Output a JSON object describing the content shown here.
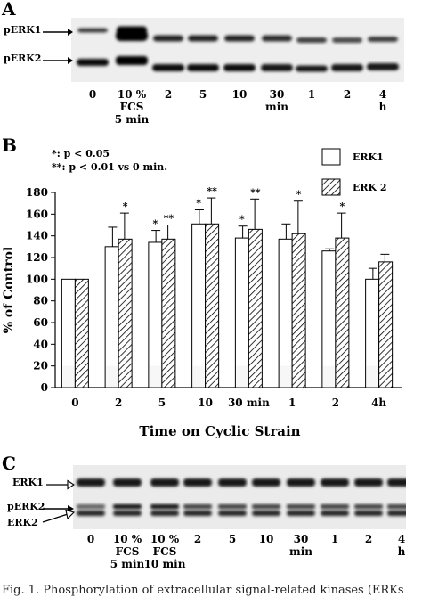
{
  "panel_a": {
    "letter": "A",
    "band_labels": [
      "pERK1",
      "pERK2"
    ],
    "lanes": [
      "0",
      "10 %\nFCS\n5 min",
      "2",
      "5",
      "10",
      "30\nmin",
      "1",
      "2",
      "4\nh"
    ]
  },
  "chart_data": {
    "type": "bar",
    "panel_letter": "B",
    "title": "",
    "xlabel": "Time on Cyclic Strain",
    "ylabel": "% of Control",
    "ylim": [
      0,
      180
    ],
    "yticks": [
      0,
      20,
      40,
      60,
      80,
      100,
      120,
      140,
      160,
      180
    ],
    "categories": [
      "0",
      "2",
      "5",
      "10",
      "30 min",
      "1",
      "2",
      "4h"
    ],
    "series": [
      {
        "name": "ERK1",
        "values": [
          100,
          130,
          134,
          151,
          138,
          137,
          126,
          100
        ],
        "errors": [
          0,
          18,
          11,
          13,
          11,
          14,
          2,
          10
        ]
      },
      {
        "name": "ERK 2",
        "values": [
          100,
          137,
          137,
          151,
          146,
          142,
          138,
          116
        ],
        "errors": [
          0,
          24,
          13,
          24,
          28,
          30,
          23,
          7
        ]
      }
    ],
    "significance": [
      {
        "category": "5",
        "series": "ERK1",
        "mark": "*"
      },
      {
        "category": "5",
        "series": "ERK 2",
        "mark": "**"
      },
      {
        "category": "10",
        "series": "ERK1",
        "mark": "*"
      },
      {
        "category": "10",
        "series": "ERK 2",
        "mark": "**"
      },
      {
        "category": "30 min",
        "series": "ERK1",
        "mark": "*"
      },
      {
        "category": "30 min",
        "series": "ERK 2",
        "mark": "**"
      },
      {
        "category": "1",
        "series": "ERK 2",
        "mark": "*"
      },
      {
        "category": "2",
        "series": "ERK 2",
        "mark": "*"
      }
    ],
    "notes": [
      "*: p < 0.05",
      "**: p < 0.01 vs 0 min."
    ],
    "legend_position": "top-right",
    "grid": false
  },
  "panel_c": {
    "letter": "C",
    "band_labels": [
      "ERK1",
      "pERK2",
      "ERK2"
    ],
    "lanes": [
      "0",
      "10 %\nFCS\n5 min",
      "10 %\nFCS\n10 min",
      "2",
      "5",
      "10",
      "30\nmin",
      "1",
      "2",
      "4\nh"
    ]
  },
  "caption_text": "Fig. 1. Phosphorylation of extracellular signal-related kinases (ERKs"
}
